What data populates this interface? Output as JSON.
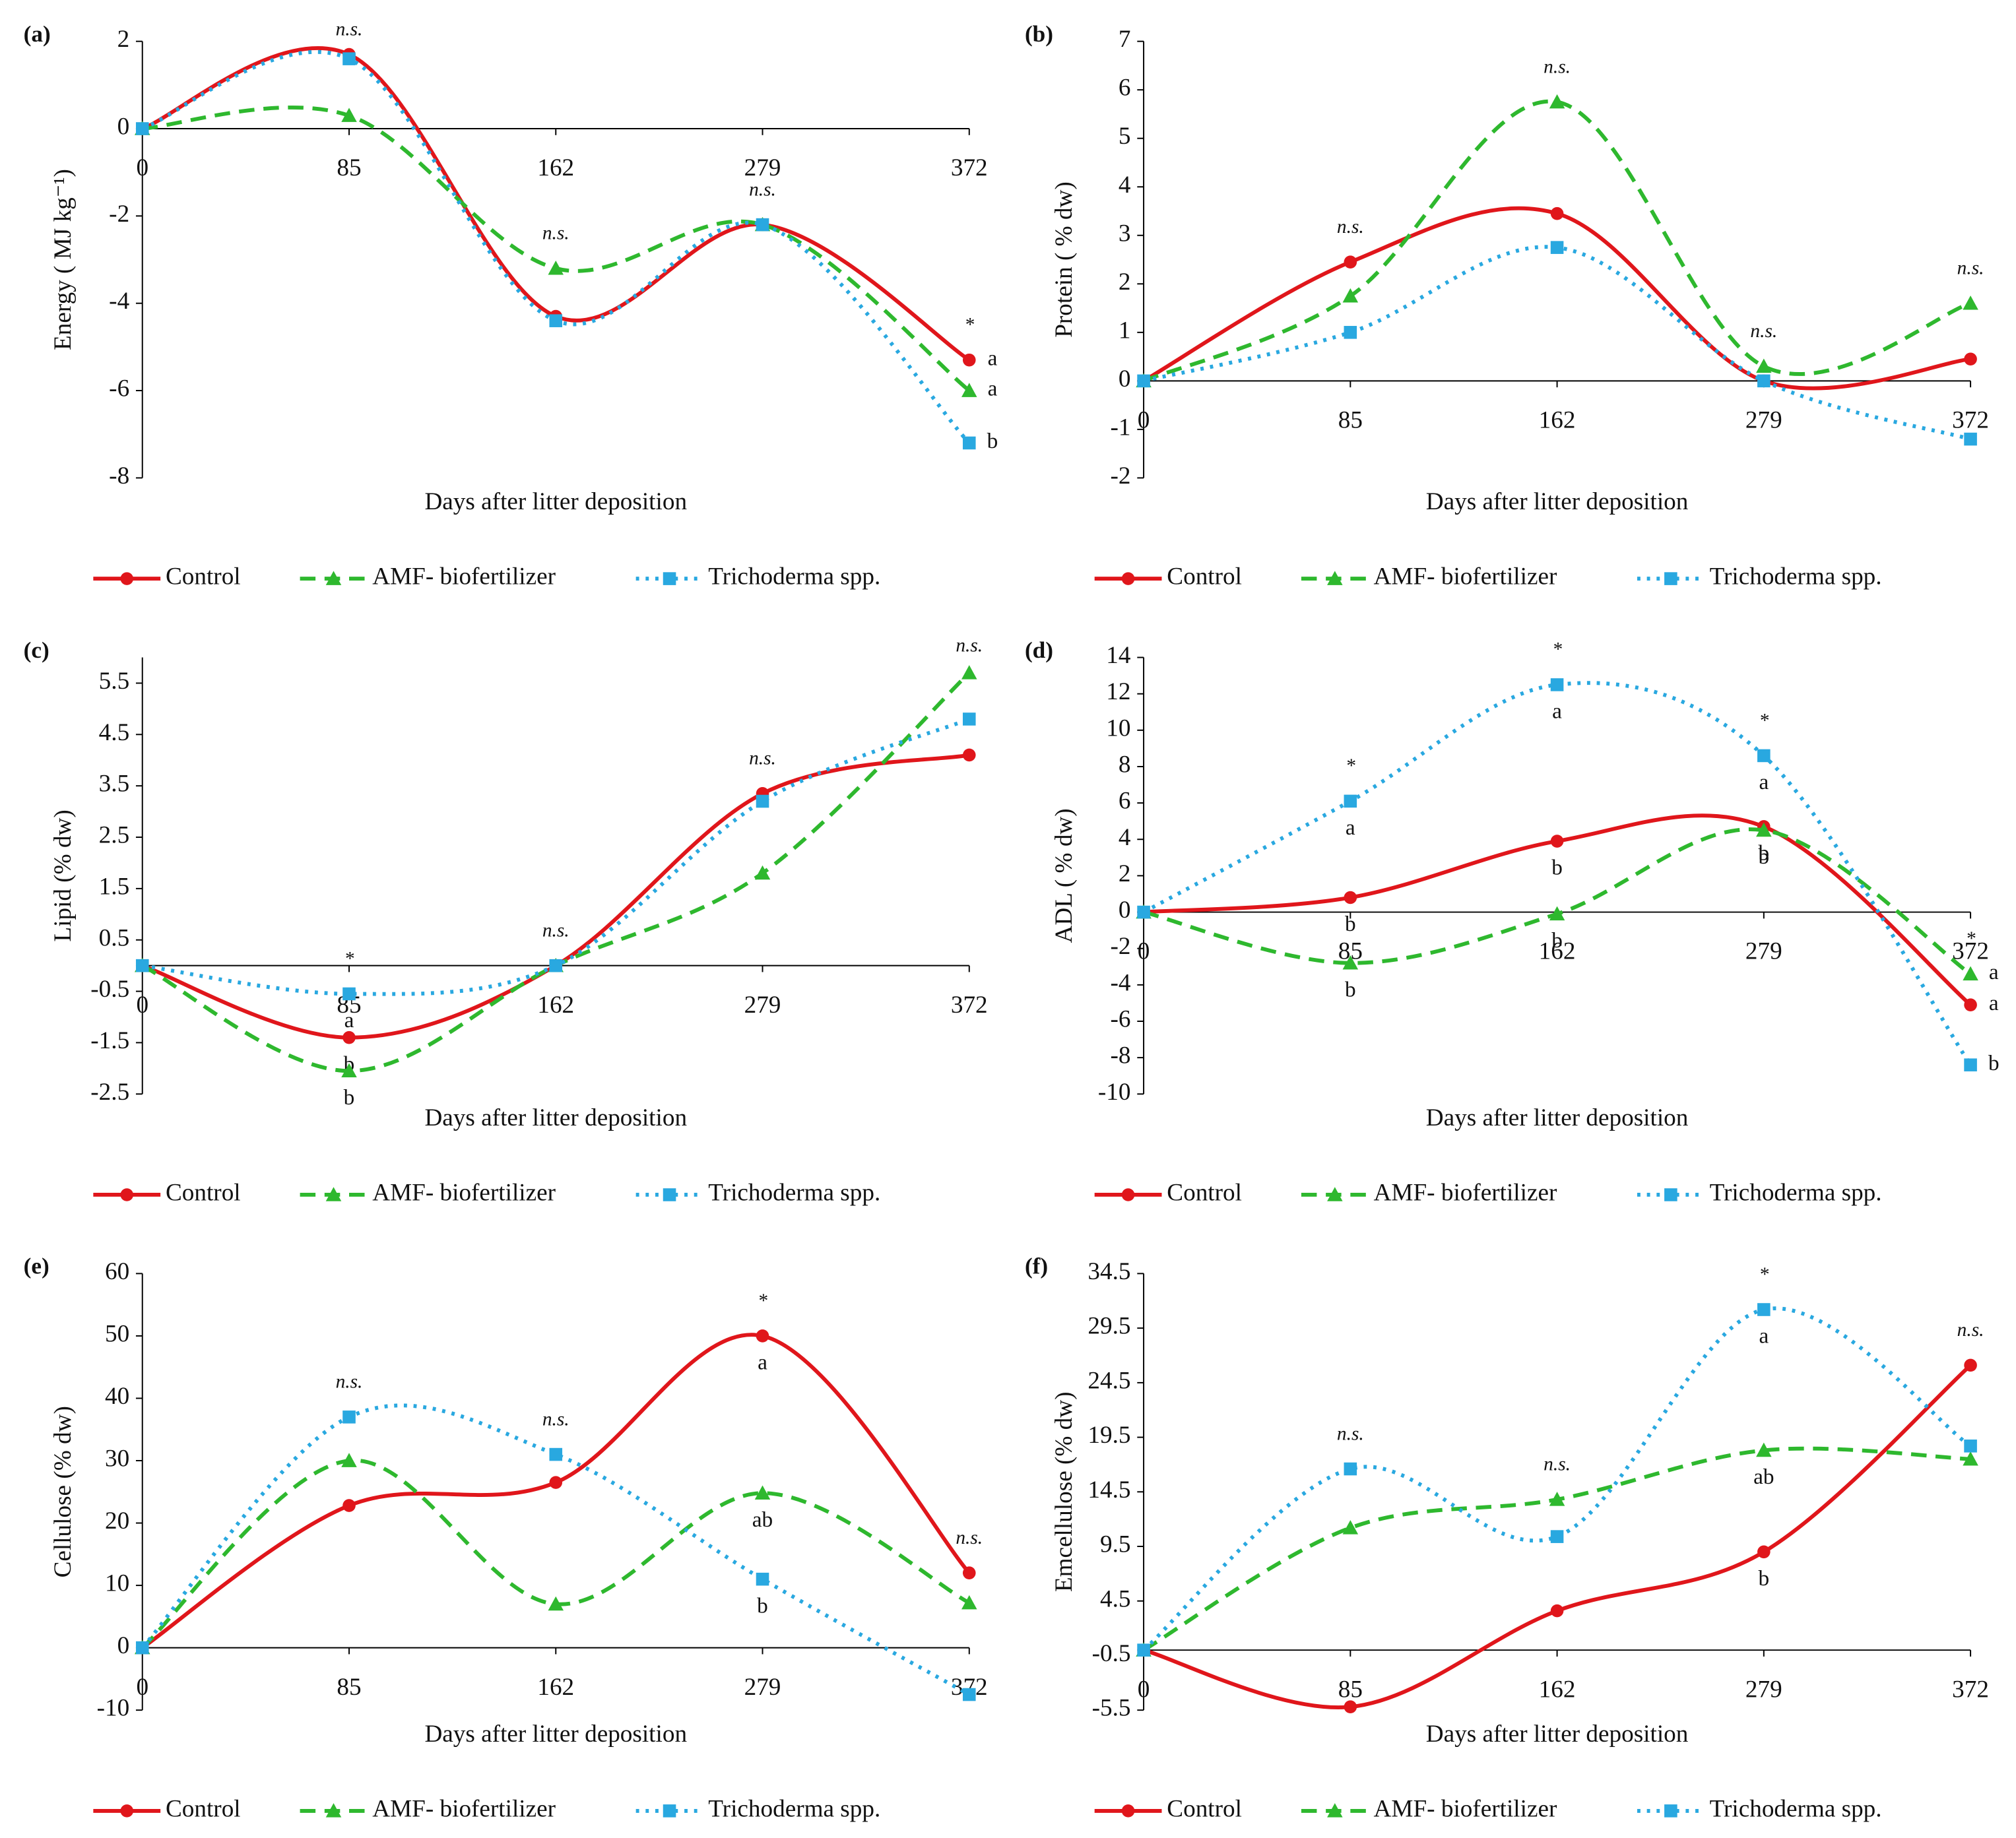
{
  "chart_data": [
    {
      "type": "line",
      "panel": "(a)",
      "ylabel": "Energy ( MJ kg⁻¹)",
      "xlabel": "Days after litter deposition",
      "categories": [
        "0",
        "85",
        "162",
        "279",
        "372"
      ],
      "ylim": [
        -8,
        2
      ],
      "yticks": [
        -8,
        -6,
        -4,
        -2,
        0,
        2
      ],
      "significance": [
        null,
        "n.s.",
        "n.s.",
        "n.s.",
        "*"
      ],
      "series": [
        {
          "name": "Control",
          "color": "#e0161b",
          "dash": "solid",
          "marker": "circle",
          "values": [
            0,
            1.7,
            -4.3,
            -2.2,
            -5.3
          ],
          "letters": [
            null,
            null,
            null,
            null,
            "a"
          ]
        },
        {
          "name": "AMF- biofertilizer",
          "color": "#2eb82e",
          "dash": "dashed",
          "marker": "triangle",
          "values": [
            0,
            0.3,
            -3.2,
            -2.2,
            -6.0
          ],
          "letters": [
            null,
            null,
            null,
            null,
            "a"
          ]
        },
        {
          "name": "Trichoderma spp.",
          "color": "#29a8e0",
          "dash": "dotted",
          "marker": "square",
          "values": [
            0,
            1.6,
            -4.4,
            -2.2,
            -7.2
          ],
          "letters": [
            null,
            null,
            null,
            null,
            "b"
          ]
        }
      ]
    },
    {
      "type": "line",
      "panel": "(b)",
      "ylabel": "Protein ( % dw)",
      "xlabel": "Days after litter deposition",
      "categories": [
        "0",
        "85",
        "162",
        "279",
        "372"
      ],
      "ylim": [
        -2,
        7
      ],
      "yticks": [
        -2,
        -1,
        0,
        1,
        2,
        3,
        4,
        5,
        6,
        7
      ],
      "significance": [
        null,
        "n.s.",
        "n.s.",
        "n.s.",
        "n.s."
      ],
      "series": [
        {
          "name": "Control",
          "color": "#e0161b",
          "dash": "solid",
          "marker": "circle",
          "values": [
            0,
            2.45,
            3.45,
            0,
            0.45
          ],
          "letters": [
            null,
            null,
            null,
            null,
            null
          ]
        },
        {
          "name": "AMF- biofertilizer",
          "color": "#2eb82e",
          "dash": "dashed",
          "marker": "triangle",
          "values": [
            0,
            1.75,
            5.75,
            0.3,
            1.6
          ],
          "letters": [
            null,
            null,
            null,
            null,
            null
          ]
        },
        {
          "name": "Trichoderma spp.",
          "color": "#29a8e0",
          "dash": "dotted",
          "marker": "square",
          "values": [
            0,
            1.0,
            2.75,
            0,
            -1.2
          ],
          "letters": [
            null,
            null,
            null,
            null,
            null
          ]
        }
      ]
    },
    {
      "type": "line",
      "panel": "(c)",
      "ylabel": "Lipid (% dw)",
      "xlabel": "Days after litter deposition",
      "categories": [
        "0",
        "85",
        "162",
        "279",
        "372"
      ],
      "ylim": [
        -2.5,
        6
      ],
      "yticks": [
        -2.5,
        -1.5,
        -0.5,
        0.5,
        1.5,
        2.5,
        3.5,
        4.5,
        5.5
      ],
      "significance": [
        null,
        "*",
        "n.s.",
        "n.s.",
        "n.s."
      ],
      "series": [
        {
          "name": "Control",
          "color": "#e0161b",
          "dash": "solid",
          "marker": "circle",
          "values": [
            0,
            -1.4,
            0,
            3.35,
            4.1
          ],
          "letters": [
            null,
            "b",
            null,
            null,
            null
          ]
        },
        {
          "name": "AMF- biofertilizer",
          "color": "#2eb82e",
          "dash": "dashed",
          "marker": "triangle",
          "values": [
            0,
            -2.05,
            0,
            1.8,
            5.7
          ],
          "letters": [
            null,
            "b",
            null,
            null,
            null
          ]
        },
        {
          "name": "Trichoderma spp.",
          "color": "#29a8e0",
          "dash": "dotted",
          "marker": "square",
          "values": [
            0,
            -0.55,
            0,
            3.2,
            4.8
          ],
          "letters": [
            null,
            "a",
            null,
            null,
            null
          ]
        }
      ]
    },
    {
      "type": "line",
      "panel": "(d)",
      "ylabel": "ADL ( % dw)",
      "xlabel": "Days after litter deposition",
      "categories": [
        "0",
        "85",
        "162",
        "279",
        "372"
      ],
      "ylim": [
        -10,
        14
      ],
      "yticks": [
        -10,
        -8,
        -6,
        -4,
        -2,
        0,
        2,
        4,
        6,
        8,
        10,
        12,
        14
      ],
      "significance": [
        null,
        "*",
        "*",
        "*",
        "*"
      ],
      "series": [
        {
          "name": "Control",
          "color": "#e0161b",
          "dash": "solid",
          "marker": "circle",
          "values": [
            0,
            0.8,
            3.9,
            4.7,
            -5.1
          ],
          "letters": [
            null,
            "b",
            "b",
            "b",
            "a"
          ]
        },
        {
          "name": "AMF- biofertilizer",
          "color": "#2eb82e",
          "dash": "dashed",
          "marker": "triangle",
          "values": [
            0,
            -2.8,
            -0.1,
            4.5,
            -3.4
          ],
          "letters": [
            null,
            "b",
            "b",
            "b",
            "a"
          ]
        },
        {
          "name": "Trichoderma spp.",
          "color": "#29a8e0",
          "dash": "dotted",
          "marker": "square",
          "values": [
            0,
            6.1,
            12.5,
            8.6,
            -8.4
          ],
          "letters": [
            null,
            "a",
            "a",
            "a",
            "b"
          ]
        }
      ]
    },
    {
      "type": "line",
      "panel": "(e)",
      "ylabel": "Cellulose (% dw)",
      "xlabel": "Days after litter deposition",
      "categories": [
        "0",
        "85",
        "162",
        "279",
        "372"
      ],
      "ylim": [
        -10,
        60
      ],
      "yticks": [
        -10,
        0,
        10,
        20,
        30,
        40,
        50,
        60
      ],
      "significance": [
        null,
        "n.s.",
        "n.s.",
        "*",
        "n.s."
      ],
      "series": [
        {
          "name": "Control",
          "color": "#e0161b",
          "dash": "solid",
          "marker": "circle",
          "values": [
            0,
            22.8,
            26.5,
            50,
            12
          ],
          "letters": [
            null,
            null,
            null,
            "a",
            null
          ]
        },
        {
          "name": "AMF- biofertilizer",
          "color": "#2eb82e",
          "dash": "dashed",
          "marker": "triangle",
          "values": [
            0,
            30,
            7,
            24.8,
            7.2
          ],
          "letters": [
            null,
            null,
            null,
            "ab",
            null
          ]
        },
        {
          "name": "Trichoderma spp.",
          "color": "#29a8e0",
          "dash": "dotted",
          "marker": "square",
          "values": [
            0,
            37,
            31,
            11,
            -7.5
          ],
          "letters": [
            null,
            null,
            null,
            "b",
            null
          ]
        }
      ]
    },
    {
      "type": "line",
      "panel": "(f)",
      "ylabel": "Emcellulose (% dw)",
      "xlabel": "Days after litter deposition",
      "categories": [
        "0",
        "85",
        "162",
        "279",
        "372"
      ],
      "ylim": [
        -5.5,
        34.5
      ],
      "yticks": [
        -5.5,
        -0.5,
        4.5,
        9.5,
        14.5,
        19.5,
        24.5,
        29.5,
        34.5
      ],
      "significance": [
        null,
        "n.s.",
        "n.s.",
        "*",
        "n.s."
      ],
      "series": [
        {
          "name": "Control",
          "color": "#e0161b",
          "dash": "solid",
          "marker": "circle",
          "values": [
            0,
            -5.2,
            3.6,
            9.0,
            26.1
          ],
          "letters": [
            null,
            null,
            null,
            "b",
            null
          ]
        },
        {
          "name": "AMF- biofertilizer",
          "color": "#2eb82e",
          "dash": "dashed",
          "marker": "triangle",
          "values": [
            0,
            11.2,
            13.8,
            18.3,
            17.5
          ],
          "letters": [
            null,
            null,
            null,
            "ab",
            null
          ]
        },
        {
          "name": "Trichoderma spp.",
          "color": "#29a8e0",
          "dash": "dotted",
          "marker": "square",
          "values": [
            0,
            16.6,
            10.4,
            31.2,
            18.7
          ],
          "letters": [
            null,
            null,
            null,
            "a",
            null
          ]
        }
      ]
    }
  ]
}
